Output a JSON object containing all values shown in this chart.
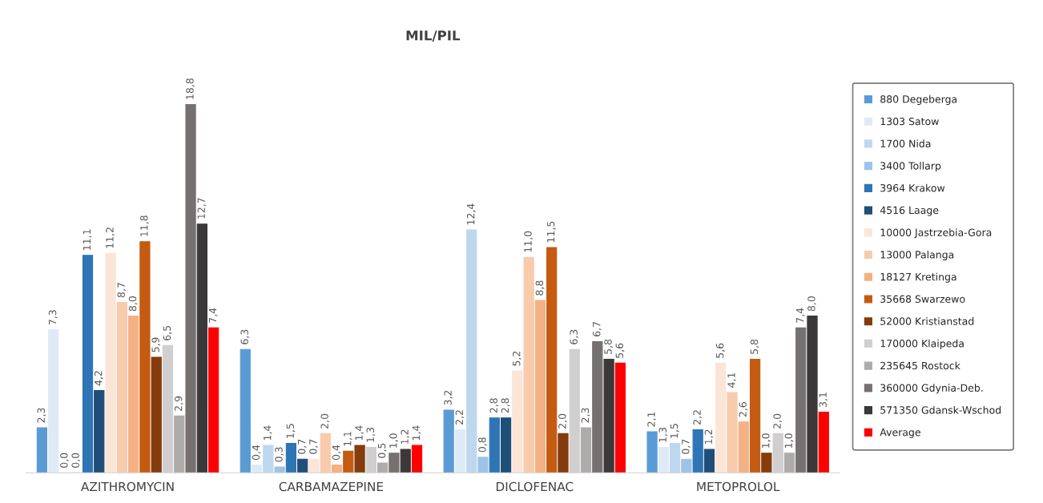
{
  "chart_data": {
    "type": "bar",
    "title": "MIL/PIL",
    "categories": [
      "AZITHROMYCIN",
      "CARBAMAZEPINE",
      "DICLOFENAC",
      "METOPROLOL"
    ],
    "legend": "right",
    "series": [
      {
        "name": "880 Degeberga",
        "color": "#5b9bd5",
        "values": [
          2.3,
          6.3,
          3.2,
          2.1
        ],
        "value_labels": [
          "2,3",
          "6,3",
          "3,2",
          "2,1"
        ]
      },
      {
        "name": "1303 Satow",
        "color": "#deebf7",
        "values": [
          7.3,
          0.4,
          2.2,
          1.3
        ],
        "value_labels": [
          "7,3",
          "0,4",
          "2,2",
          "1,3"
        ]
      },
      {
        "name": "1700 Nida",
        "color": "#bdd7ee",
        "values": [
          0.0,
          1.4,
          12.4,
          1.5
        ],
        "value_labels": [
          "0,0",
          "1,4",
          "12,4",
          "1,5"
        ]
      },
      {
        "name": "3400 Tollarp",
        "color": "#9dc3e6",
        "values": [
          0.0,
          0.3,
          0.8,
          0.7
        ],
        "value_labels": [
          "0,0",
          "0,3",
          "0,8",
          "0,7"
        ]
      },
      {
        "name": "3964 Krakow",
        "color": "#2e75b6",
        "values": [
          11.1,
          1.5,
          2.8,
          2.2
        ],
        "value_labels": [
          "11,1",
          "1,5",
          "2,8",
          "2,2"
        ]
      },
      {
        "name": "4516 Laage",
        "color": "#1f4e79",
        "values": [
          4.2,
          0.7,
          2.8,
          1.2
        ],
        "value_labels": [
          "4,2",
          "0,7",
          "2,8",
          "1,2"
        ]
      },
      {
        "name": "10000 Jastrzebia-Gora",
        "color": "#fbe5d6",
        "values": [
          11.2,
          0.7,
          5.2,
          5.6
        ],
        "value_labels": [
          "11,2",
          "0,7",
          "5,2",
          "5,6"
        ]
      },
      {
        "name": "13000 Palanga",
        "color": "#f8cbad",
        "values": [
          8.7,
          2.0,
          11.0,
          4.1
        ],
        "value_labels": [
          "8,7",
          "2,0",
          "11,0",
          "4,1"
        ]
      },
      {
        "name": "18127 Kretinga",
        "color": "#f4b183",
        "values": [
          8.0,
          0.4,
          8.8,
          2.6
        ],
        "value_labels": [
          "8,0",
          "0,4",
          "8,8",
          "2,6"
        ]
      },
      {
        "name": "35668 Swarzewo",
        "color": "#c55a11",
        "values": [
          11.8,
          1.1,
          11.5,
          5.8
        ],
        "value_labels": [
          "11,8",
          "1,1",
          "11,5",
          "5,8"
        ]
      },
      {
        "name": "52000 Kristianstad",
        "color": "#843c0c",
        "values": [
          5.9,
          1.4,
          2.0,
          1.0
        ],
        "value_labels": [
          "5,9",
          "1,4",
          "2,0",
          "1,0"
        ]
      },
      {
        "name": "170000 Klaipeda",
        "color": "#d0cece",
        "values": [
          6.5,
          1.3,
          6.3,
          2.0
        ],
        "value_labels": [
          "6,5",
          "1,3",
          "6,3",
          "2,0"
        ]
      },
      {
        "name": "235645 Rostock",
        "color": "#aeabab",
        "values": [
          2.9,
          0.5,
          2.3,
          1.0
        ],
        "value_labels": [
          "2,9",
          "0,5",
          "2,3",
          "1,0"
        ]
      },
      {
        "name": "360000 Gdynia-Deb.",
        "color": "#767171",
        "values": [
          18.8,
          1.0,
          6.7,
          7.4
        ],
        "value_labels": [
          "18,8",
          "1,0",
          "6,7",
          "7,4"
        ]
      },
      {
        "name": "571350 Gdansk-Wschod",
        "color": "#3a3838",
        "values": [
          12.7,
          1.2,
          5.8,
          8.0
        ],
        "value_labels": [
          "12,7",
          "1,2",
          "5,8",
          "8,0"
        ]
      },
      {
        "name": "Average",
        "color": "#ff0000",
        "values": [
          7.4,
          1.4,
          5.6,
          3.1
        ],
        "value_labels": [
          "7,4",
          "1,4",
          "5,6",
          "3,1"
        ]
      }
    ]
  }
}
